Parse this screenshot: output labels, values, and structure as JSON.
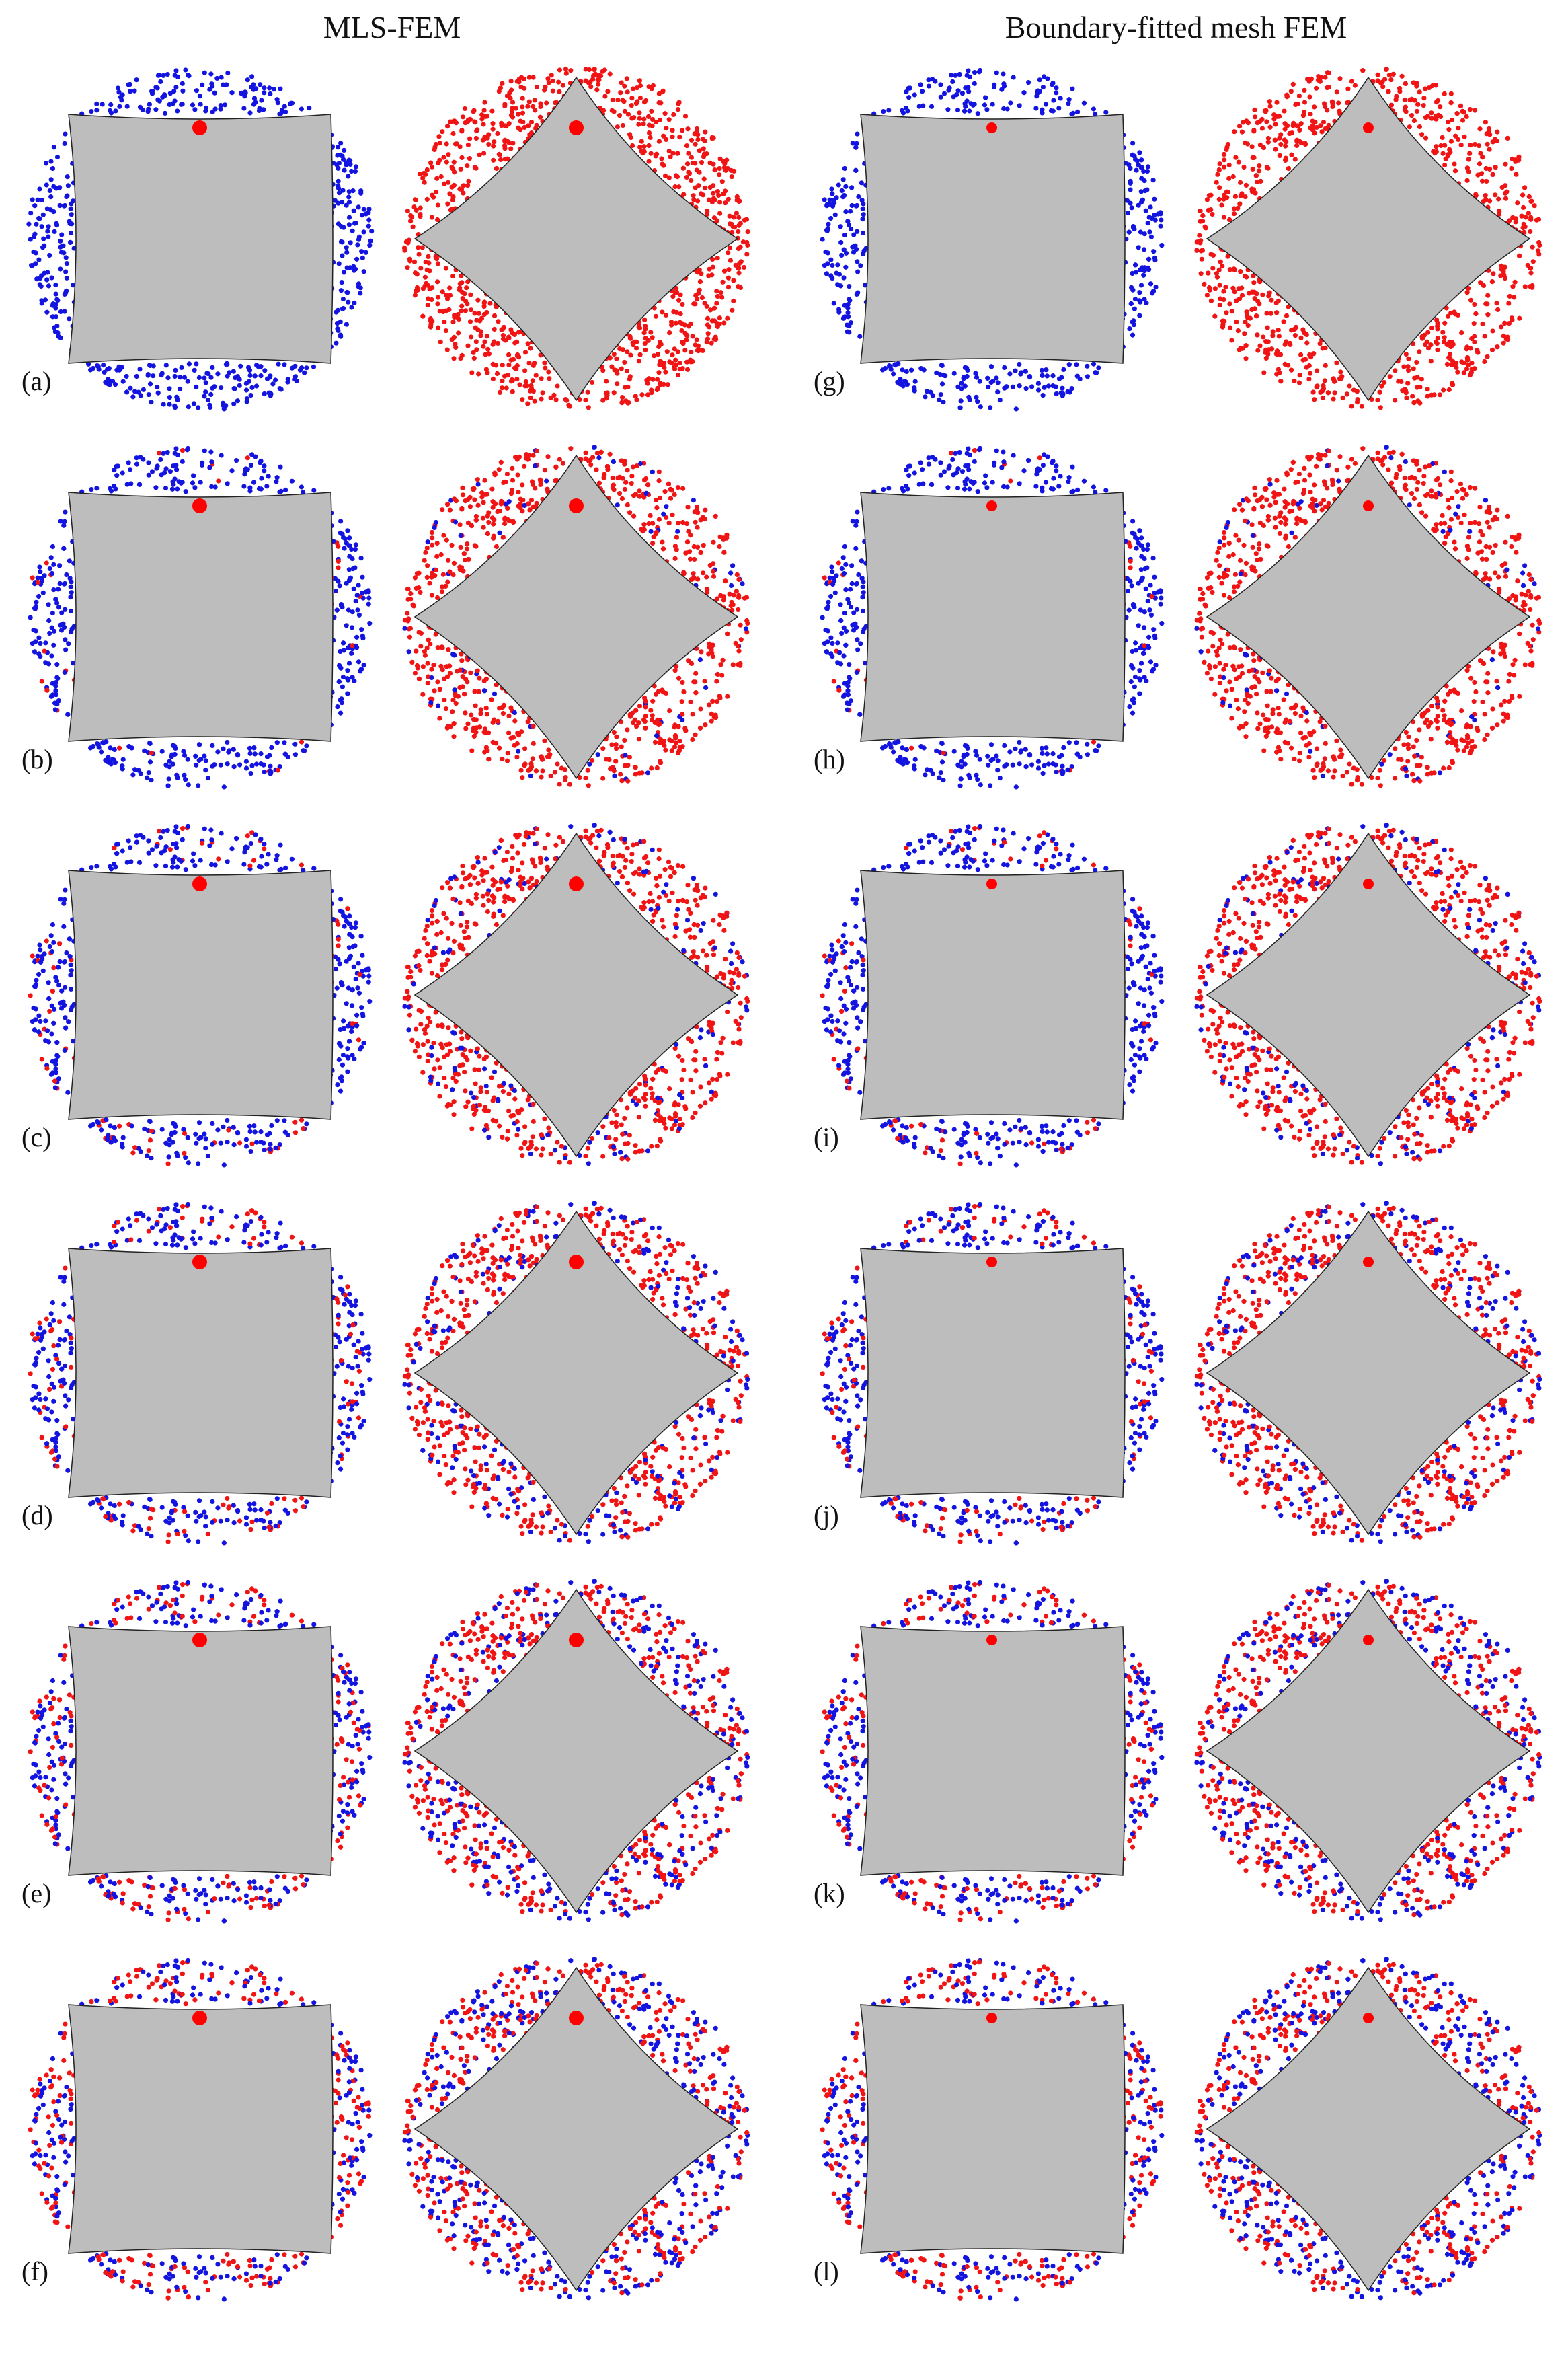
{
  "figure": {
    "column_titles": [
      "MLS-FEM",
      "Boundary-fitted mesh FEM"
    ],
    "colors": {
      "particle_species_a": "#1414e0",
      "particle_species_b": "#f01414",
      "rotor_fill": "#bdbdbd",
      "rotor_center_marker": "#ff0000",
      "mls_fem_boundary": "#000000",
      "boundary_fitted_boundary": "#1a7ac7"
    },
    "panels": [
      {
        "label": "(a)",
        "method": "MLS-FEM",
        "mixing_stage": 0
      },
      {
        "label": "(b)",
        "method": "MLS-FEM",
        "mixing_stage": 1
      },
      {
        "label": "(c)",
        "method": "MLS-FEM",
        "mixing_stage": 2
      },
      {
        "label": "(d)",
        "method": "MLS-FEM",
        "mixing_stage": 3
      },
      {
        "label": "(e)",
        "method": "MLS-FEM",
        "mixing_stage": 4
      },
      {
        "label": "(f)",
        "method": "MLS-FEM",
        "mixing_stage": 5
      },
      {
        "label": "(g)",
        "method": "Boundary-fitted mesh FEM",
        "mixing_stage": 0
      },
      {
        "label": "(h)",
        "method": "Boundary-fitted mesh FEM",
        "mixing_stage": 1
      },
      {
        "label": "(i)",
        "method": "Boundary-fitted mesh FEM",
        "mixing_stage": 2
      },
      {
        "label": "(j)",
        "method": "Boundary-fitted mesh FEM",
        "mixing_stage": 3
      },
      {
        "label": "(k)",
        "method": "Boundary-fitted mesh FEM",
        "mixing_stage": 4
      },
      {
        "label": "(l)",
        "method": "Boundary-fitted mesh FEM",
        "mixing_stage": 5
      }
    ]
  }
}
